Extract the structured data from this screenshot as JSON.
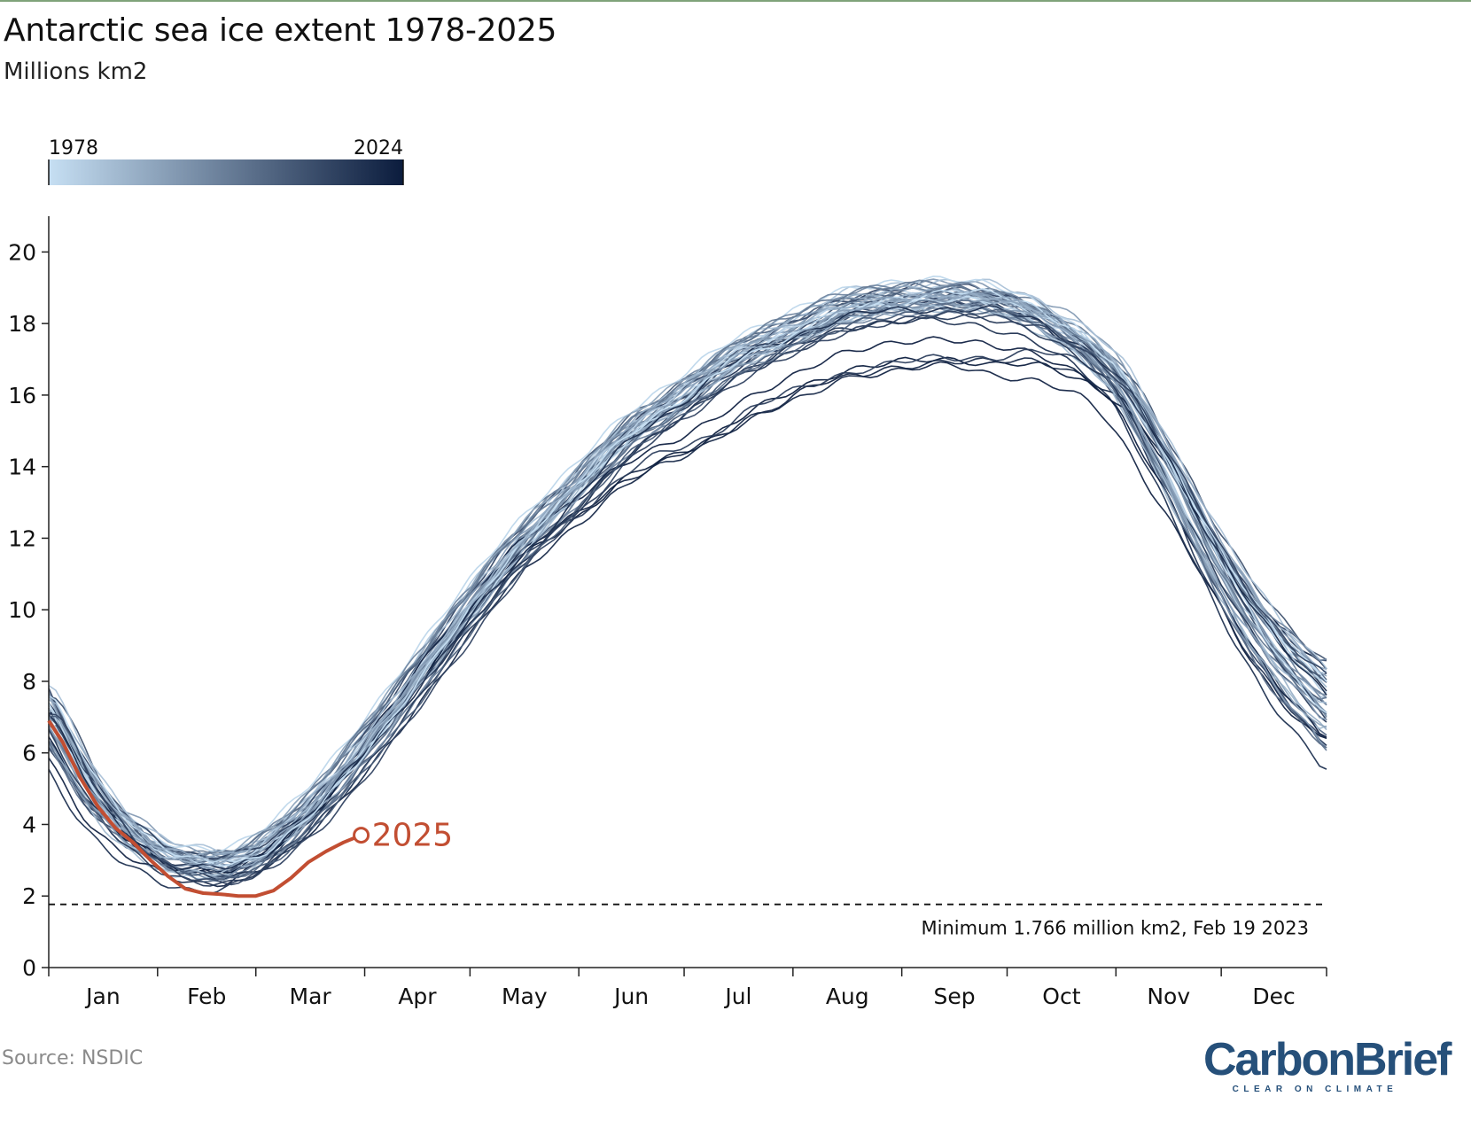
{
  "title": "Antarctic sea ice extent 1978-2025",
  "subtitle": "Millions km2",
  "source": "Source: NSDIC",
  "logo": {
    "name": "CarbonBrief",
    "tagline": "CLEAR ON CLIMATE"
  },
  "colors": {
    "old_year": "#c6dff3",
    "new_year": "#0b1c3d",
    "highlight": "#c24e32",
    "axis": "#222222"
  },
  "chart_data": {
    "type": "line",
    "title": "Antarctic sea ice extent 1978-2025",
    "ylabel": "Millions km2",
    "xlabel": "",
    "ylim": [
      0,
      21
    ],
    "xlim": [
      1,
      365
    ],
    "grid": false,
    "yticks": [
      "0",
      "2",
      "4",
      "6",
      "8",
      "10",
      "12",
      "14",
      "16",
      "18",
      "20"
    ],
    "months": [
      "Jan",
      "Feb",
      "Mar",
      "Apr",
      "May",
      "Jun",
      "Jul",
      "Aug",
      "Sep",
      "Oct",
      "Nov",
      "Dec"
    ],
    "legend": {
      "type": "colorbar",
      "start_label": "1978",
      "end_label": "2024"
    },
    "climatology_day": [
      1,
      15,
      32,
      50,
      60,
      75,
      91,
      105,
      121,
      135,
      152,
      166,
      182,
      196,
      213,
      227,
      244,
      258,
      274,
      288,
      305,
      319,
      335,
      350,
      365
    ],
    "climatology_extent": [
      6.9,
      4.6,
      3.1,
      2.7,
      3.0,
      4.2,
      6.0,
      7.8,
      9.9,
      11.6,
      13.3,
      14.7,
      15.8,
      16.8,
      17.6,
      18.2,
      18.5,
      18.6,
      18.4,
      17.8,
      16.4,
      14.0,
      11.0,
      8.7,
      7.1
    ],
    "highlight": {
      "name": "2025",
      "label": "2025",
      "day": [
        1,
        5,
        10,
        15,
        20,
        25,
        30,
        35,
        40,
        45,
        50,
        55,
        60,
        65,
        70,
        75,
        80,
        85,
        90
      ],
      "extent": [
        6.9,
        6.3,
        5.3,
        4.5,
        3.9,
        3.5,
        3.0,
        2.55,
        2.2,
        2.08,
        2.05,
        2.0,
        2.0,
        2.15,
        2.5,
        2.95,
        3.25,
        3.5,
        3.7
      ]
    },
    "reference_line": {
      "value": 1.766,
      "style": "dashed",
      "label": "Minimum 1.766 million km2, Feb 19 2023"
    }
  }
}
